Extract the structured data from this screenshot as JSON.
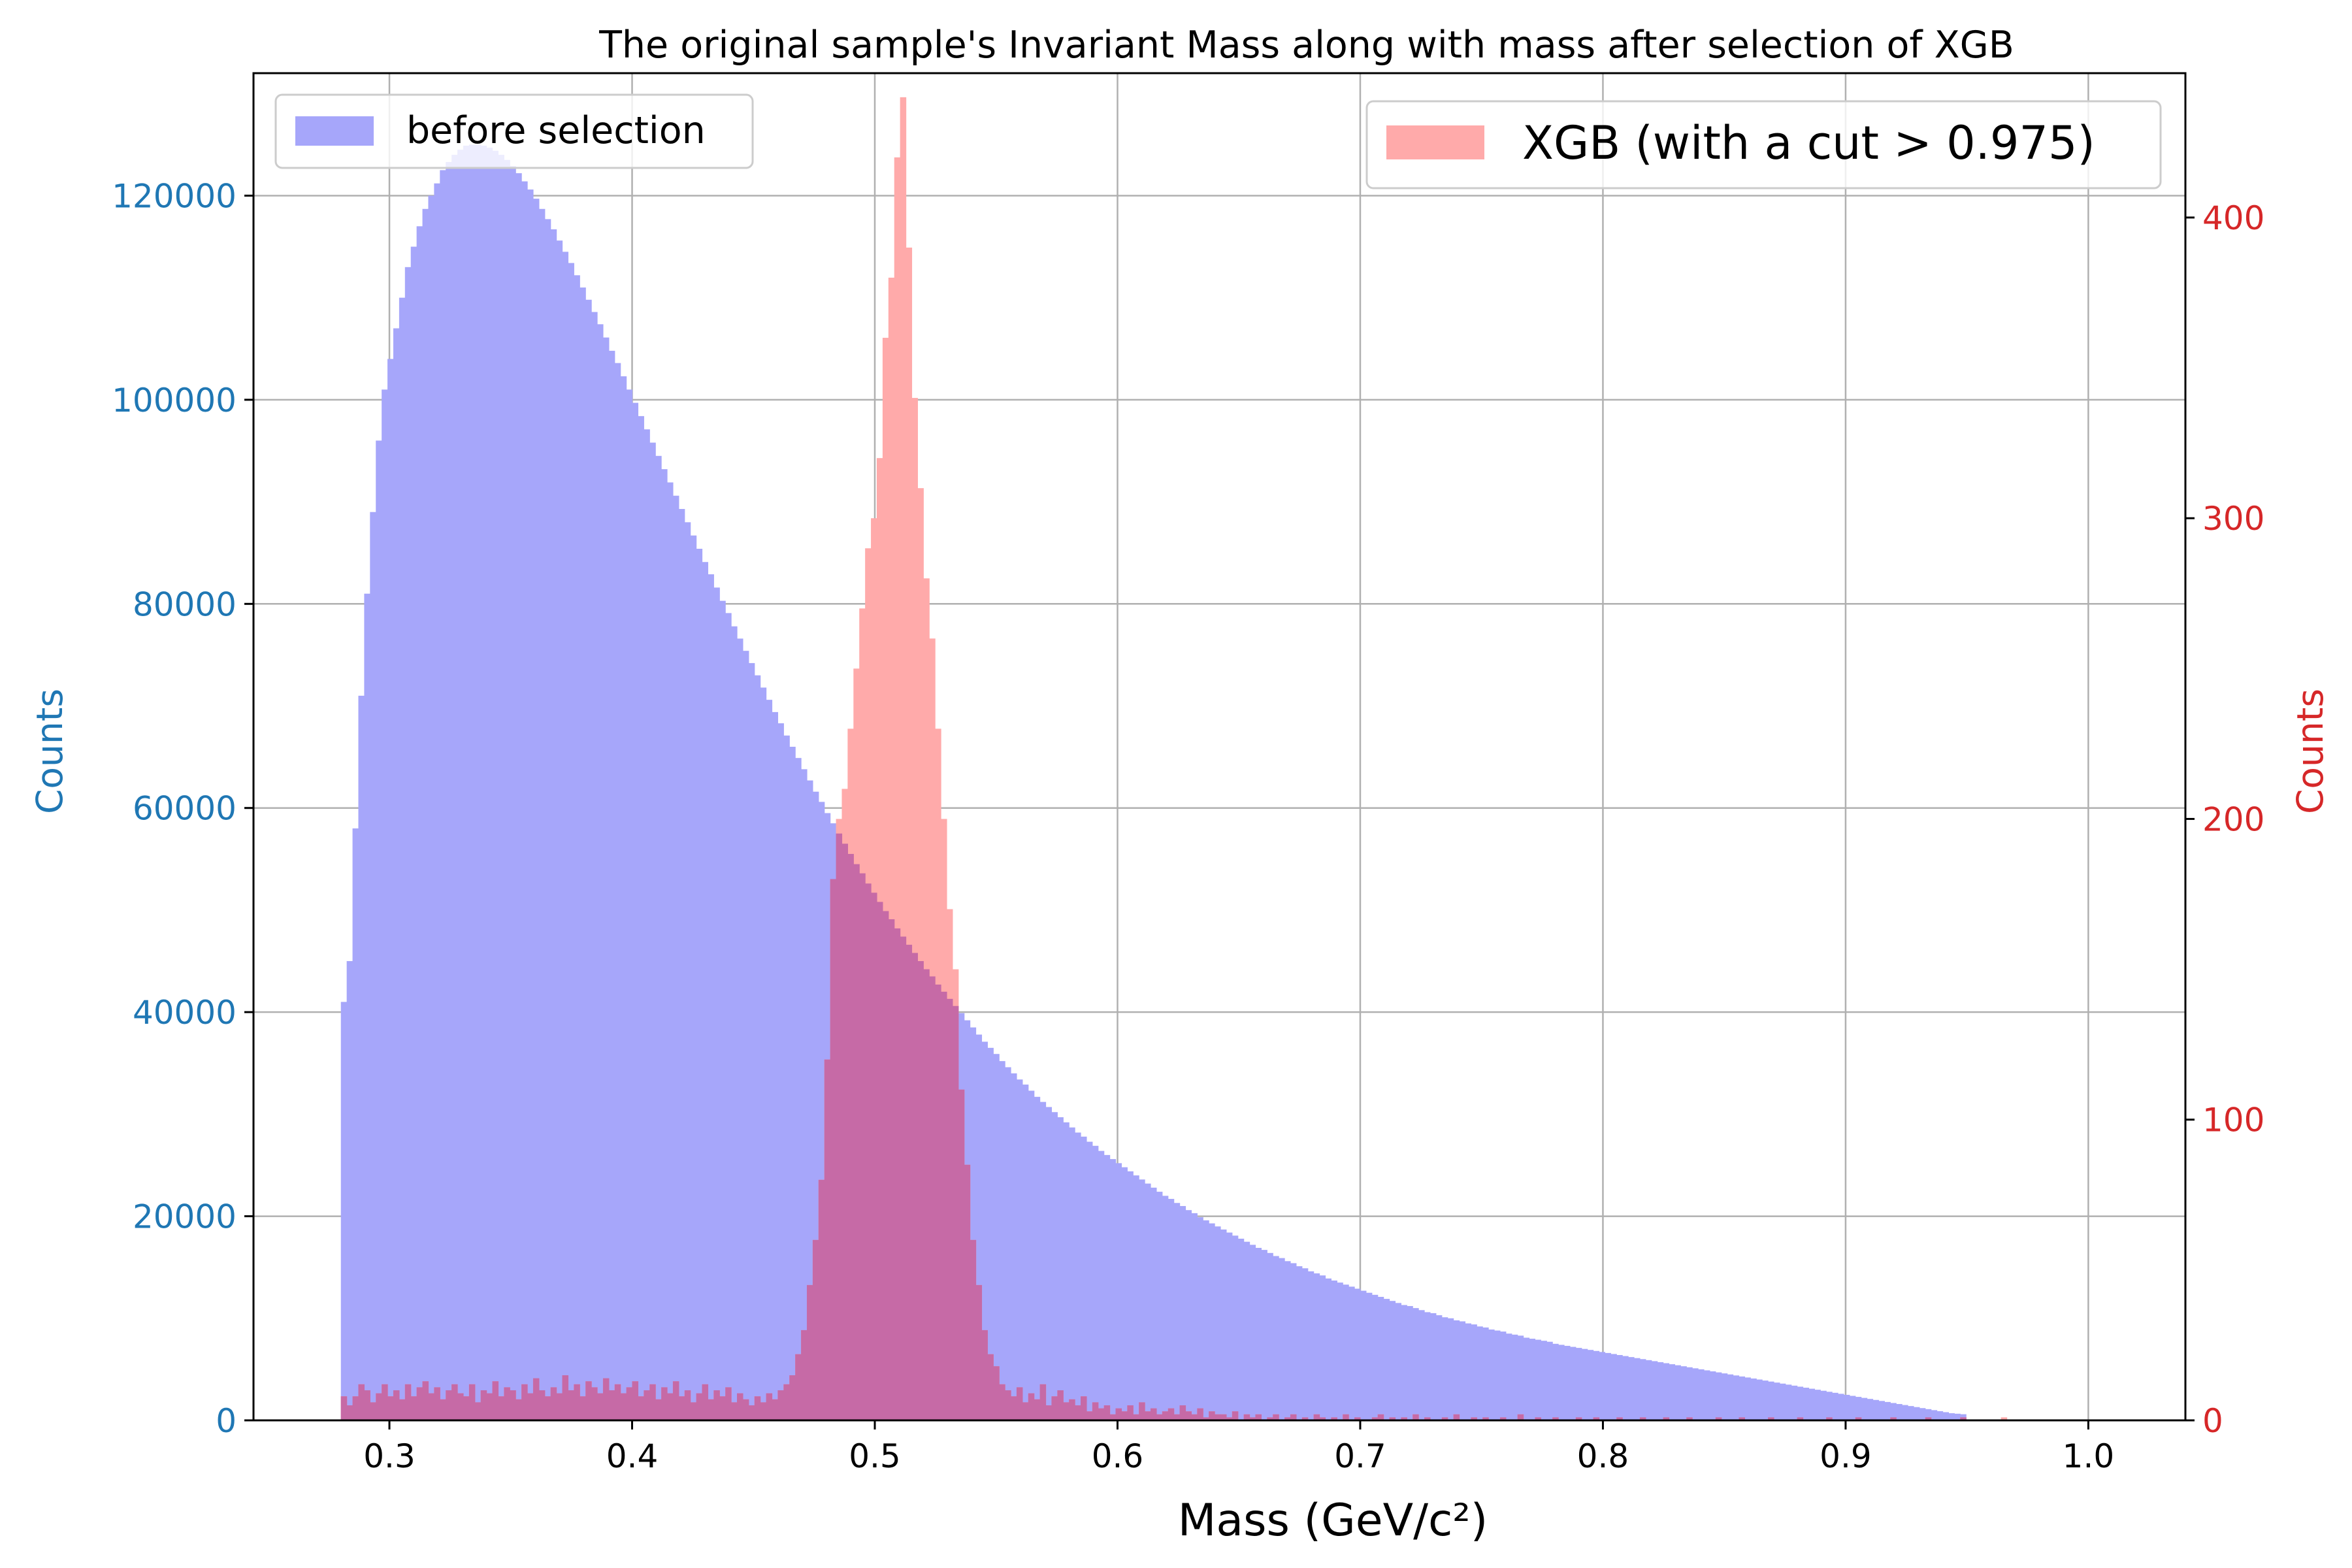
{
  "chart_data": {
    "type": "bar",
    "title": "The original sample's Invariant Mass along with mass after selection of XGB",
    "xlabel": "Mass (GeV/c²)",
    "ylabel_left": "Counts",
    "ylabel_right": "Counts",
    "xlim": [
      0.244,
      1.04
    ],
    "ylim_left": [
      0,
      132000
    ],
    "ylim_right": [
      0,
      448
    ],
    "x_ticks": [
      0.3,
      0.4,
      0.5,
      0.6,
      0.7,
      0.8,
      0.9,
      1.0
    ],
    "x_tick_labels": [
      "0.3",
      "0.4",
      "0.5",
      "0.6",
      "0.7",
      "0.8",
      "0.9",
      "1.0"
    ],
    "y_left_ticks": [
      0,
      20000,
      40000,
      60000,
      80000,
      100000,
      120000
    ],
    "y_left_tick_labels": [
      "0",
      "20000",
      "40000",
      "60000",
      "80000",
      "100000",
      "120000"
    ],
    "y_right_ticks": [
      0,
      100,
      200,
      300,
      400
    ],
    "y_right_tick_labels": [
      "0",
      "100",
      "200",
      "300",
      "400"
    ],
    "grid": true,
    "colors": {
      "before": "#a6a6fa",
      "after": "#ffaaaa",
      "overlap": "#c66aa6",
      "left_axis": "#1f77b4",
      "right_axis": "#d62728"
    },
    "series": [
      {
        "name": "before selection",
        "axis": "left",
        "bin_start": 0.28,
        "bin_width": 0.0024,
        "values": [
          41000,
          45000,
          58000,
          71000,
          81000,
          89000,
          96000,
          101000,
          104000,
          107000,
          110000,
          113000,
          115000,
          117000,
          118700,
          120000,
          121200,
          122500,
          123300,
          124000,
          124500,
          124900,
          125000,
          125000,
          124900,
          124700,
          124400,
          124000,
          123500,
          122900,
          122200,
          121400,
          120600,
          119700,
          118700,
          117700,
          116700,
          115600,
          114500,
          113400,
          112200,
          111000,
          109800,
          108600,
          107400,
          106100,
          104800,
          103600,
          102300,
          101000,
          99700,
          98400,
          97100,
          95800,
          94500,
          93200,
          91900,
          90600,
          89300,
          88000,
          86700,
          85400,
          84100,
          82900,
          81600,
          80300,
          79100,
          77800,
          76600,
          75400,
          74200,
          73000,
          71800,
          70600,
          69400,
          68300,
          67100,
          66000,
          64900,
          63800,
          62700,
          61600,
          60600,
          59500,
          58500,
          57500,
          56500,
          55500,
          54500,
          53600,
          52600,
          51700,
          50800,
          49900,
          49100,
          48200,
          47400,
          46600,
          45800,
          45000,
          44200,
          43500,
          42700,
          42000,
          41300,
          40600,
          39900,
          39200,
          38500,
          37800,
          37100,
          36500,
          35900,
          35200,
          34600,
          34000,
          33400,
          32900,
          32300,
          31700,
          31200,
          30700,
          30200,
          29700,
          29200,
          28700,
          28200,
          27800,
          27300,
          26900,
          26400,
          26000,
          25600,
          25200,
          24800,
          24400,
          24000,
          23600,
          23200,
          22800,
          22400,
          22000,
          21700,
          21300,
          21000,
          20600,
          20300,
          19900,
          19600,
          19300,
          19000,
          18700,
          18400,
          18100,
          17800,
          17500,
          17200,
          16900,
          16700,
          16400,
          16100,
          15900,
          15600,
          15400,
          15100,
          14900,
          14600,
          14400,
          14200,
          13900,
          13700,
          13500,
          13300,
          13100,
          12900,
          12700,
          12500,
          12300,
          12100,
          11900,
          11700,
          11500,
          11300,
          11200,
          11000,
          10800,
          10600,
          10500,
          10300,
          10100,
          10000,
          9800,
          9700,
          9500,
          9400,
          9200,
          9100,
          8900,
          8800,
          8700,
          8500,
          8400,
          8300,
          8100,
          8000,
          7900,
          7800,
          7700,
          7500,
          7400,
          7300,
          7200,
          7100,
          7000,
          6900,
          6800,
          6700,
          6600,
          6500,
          6400,
          6300,
          6200,
          6100,
          6000,
          5900,
          5800,
          5700,
          5600,
          5500,
          5400,
          5300,
          5200,
          5100,
          5000,
          4900,
          4800,
          4700,
          4600,
          4500,
          4400,
          4300,
          4200,
          4100,
          4000,
          3900,
          3800,
          3700,
          3600,
          3500,
          3400,
          3300,
          3200,
          3100,
          3000,
          2900,
          2800,
          2700,
          2600,
          2500,
          2400,
          2300,
          2200,
          2100,
          2000,
          1900,
          1800,
          1700,
          1600,
          1500,
          1400,
          1300,
          1200,
          1100,
          1000,
          900,
          800,
          700,
          650,
          600
        ]
      },
      {
        "name": "XGB (with a cut > 0.975)",
        "axis": "right",
        "bin_start": 0.28,
        "bin_width": 0.0024,
        "values": [
          8,
          5,
          8,
          12,
          10,
          6,
          9,
          12,
          8,
          10,
          7,
          12,
          8,
          11,
          13,
          9,
          11,
          7,
          10,
          12,
          9,
          8,
          12,
          6,
          10,
          9,
          13,
          8,
          11,
          10,
          7,
          12,
          9,
          14,
          10,
          8,
          11,
          9,
          15,
          10,
          12,
          8,
          13,
          11,
          9,
          14,
          10,
          12,
          9,
          11,
          13,
          8,
          10,
          12,
          7,
          11,
          9,
          13,
          8,
          10,
          6,
          9,
          12,
          7,
          10,
          8,
          11,
          6,
          9,
          7,
          5,
          8,
          6,
          9,
          7,
          10,
          12,
          15,
          22,
          30,
          45,
          60,
          80,
          120,
          180,
          200,
          210,
          230,
          250,
          270,
          290,
          300,
          320,
          360,
          380,
          420,
          440,
          390,
          340,
          310,
          280,
          260,
          230,
          200,
          170,
          150,
          110,
          85,
          60,
          45,
          30,
          22,
          18,
          12,
          10,
          8,
          11,
          6,
          9,
          7,
          12,
          5,
          8,
          10,
          6,
          7,
          5,
          8,
          3,
          6,
          4,
          5,
          2,
          4,
          3,
          5,
          2,
          6,
          3,
          4,
          2,
          3,
          4,
          2,
          5,
          3,
          2,
          4,
          1,
          3,
          2,
          2,
          1,
          3,
          0,
          2,
          1,
          2,
          0,
          1,
          2,
          0,
          1,
          2,
          0,
          1,
          0,
          2,
          1,
          0,
          1,
          0,
          2,
          0,
          1,
          0,
          0,
          1,
          2,
          0,
          1,
          0,
          1,
          0,
          2,
          0,
          1,
          0,
          0,
          1,
          0,
          2,
          0,
          0,
          1,
          0,
          1,
          0,
          0,
          1,
          0,
          0,
          2,
          0,
          0,
          1,
          0,
          0,
          1,
          0,
          0,
          0,
          1,
          0,
          0,
          1,
          0,
          0,
          0,
          1,
          0,
          0,
          0,
          1,
          0,
          0,
          0,
          1,
          0,
          0,
          0,
          1,
          0,
          0,
          0,
          0,
          1,
          0,
          0,
          0,
          1,
          0,
          0,
          0,
          0,
          1,
          0,
          0,
          0,
          0,
          1,
          0,
          0,
          0,
          0,
          1,
          0,
          0,
          0,
          0,
          1,
          0,
          0,
          0,
          0,
          0,
          1,
          0,
          0,
          0,
          0,
          0,
          1,
          0,
          0,
          0,
          0,
          0,
          1,
          0,
          0,
          0,
          0,
          0,
          0,
          1,
          0,
          0,
          0
        ]
      }
    ],
    "legends": [
      {
        "label": "before selection",
        "placement": "upper-left"
      },
      {
        "label": "XGB (with a cut > 0.975)",
        "placement": "upper-right"
      }
    ]
  }
}
